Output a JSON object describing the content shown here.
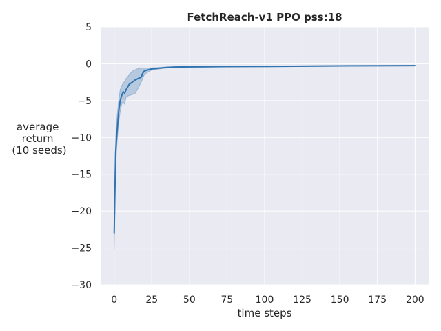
{
  "chart_data": {
    "type": "line",
    "title": "FetchReach-v1 PPO pss:18",
    "xlabel": "time steps",
    "ylabel": [
      "average",
      "return",
      "(10 seeds)"
    ],
    "xlim": [
      -9,
      209
    ],
    "ylim": [
      -30,
      5
    ],
    "xticks": [
      0,
      25,
      50,
      75,
      100,
      125,
      150,
      175,
      200
    ],
    "yticks": [
      5,
      0,
      -5,
      -10,
      -15,
      -20,
      -25,
      -30
    ],
    "grid": true,
    "legend": "none",
    "colors": {
      "background": "#eaeaf2",
      "grid": "#ffffff",
      "line": "#2f74b1",
      "band": "#2f74b1"
    },
    "series": [
      {
        "x": [
          0,
          1,
          2,
          3,
          4,
          5,
          6,
          7,
          8,
          10,
          12,
          14,
          16,
          18,
          19,
          20,
          22,
          25,
          30,
          35,
          40,
          50,
          60,
          70,
          80,
          100,
          120,
          140,
          160,
          180,
          200
        ],
        "y": [
          -23,
          -12,
          -9,
          -6.5,
          -5,
          -4.3,
          -3.8,
          -4,
          -3.5,
          -2.8,
          -2.5,
          -2.2,
          -2,
          -1.8,
          -1.3,
          -1.0,
          -0.85,
          -0.7,
          -0.6,
          -0.5,
          -0.45,
          -0.42,
          -0.4,
          -0.38,
          -0.37,
          -0.35,
          -0.33,
          -0.3,
          -0.28,
          -0.27,
          -0.25
        ],
        "lower": [
          -25.3,
          -14,
          -10.5,
          -8,
          -6.5,
          -5.5,
          -5.2,
          -5.5,
          -4.5,
          -4.3,
          -4.2,
          -4,
          -3.3,
          -2.5,
          -2,
          -1.5,
          -1.2,
          -0.85,
          -0.7,
          -0.58,
          -0.52,
          -0.48,
          -0.46,
          -0.44,
          -0.42,
          -0.4,
          -0.38,
          -0.35,
          -0.33,
          -0.31,
          -0.29
        ],
        "upper": [
          -20.5,
          -10,
          -7,
          -5,
          -3.5,
          -3,
          -2.6,
          -2.4,
          -2.0,
          -1.5,
          -1.0,
          -0.8,
          -0.65,
          -0.6,
          -0.6,
          -0.6,
          -0.6,
          -0.55,
          -0.5,
          -0.42,
          -0.38,
          -0.36,
          -0.34,
          -0.33,
          -0.32,
          -0.3,
          -0.28,
          -0.26,
          -0.24,
          -0.23,
          -0.21
        ]
      }
    ]
  }
}
